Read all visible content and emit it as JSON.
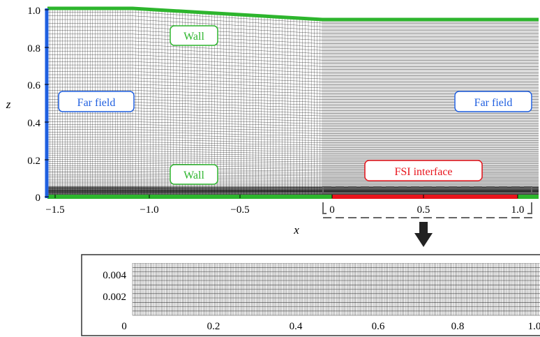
{
  "main_plot": {
    "xlabel": "x",
    "ylabel": "z",
    "x_ticks": [
      "−1.5",
      "−1.0",
      "−0.5",
      "0",
      "0.5",
      "1.0"
    ],
    "y_ticks": [
      "0",
      "0.2",
      "0.4",
      "0.6",
      "0.8",
      "1.0"
    ],
    "xlim": [
      -1.5,
      1.1
    ],
    "ylim": [
      0,
      1.0
    ],
    "labels": {
      "wall_top": "Wall",
      "wall_bottom": "Wall",
      "far_field_left": "Far field",
      "far_field_right": "Far field",
      "fsi_interface": "FSI interface"
    }
  },
  "inset": {
    "x_ticks": [
      "0",
      "0.2",
      "0.4",
      "0.6",
      "0.8",
      "1.0"
    ],
    "y_ticks": [
      "0.002",
      "0.004"
    ],
    "xlim": [
      0,
      1.0
    ],
    "ylim": [
      0,
      0.005
    ]
  },
  "colors": {
    "wall": "#2db52d",
    "far_field": "#1f5fe0",
    "fsi": "#e8141c",
    "mesh": "#000000",
    "arrow": "#222222"
  }
}
